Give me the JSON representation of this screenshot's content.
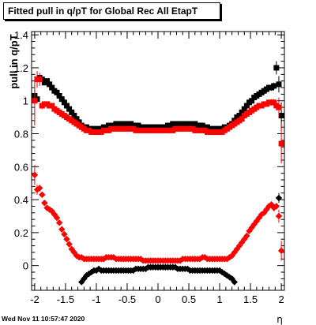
{
  "chart_data": {
    "type": "scatter",
    "title": "Fitted pull in q/pT for Global Rec All EtapT",
    "ylabel": "pull in q/pT",
    "xlabel": "η",
    "xlim": [
      -2.05,
      2.05
    ],
    "ylim": [
      -0.15,
      1.42
    ],
    "x_ticks": [
      "-2",
      "-1.5",
      "-1",
      "-0.5",
      "0",
      "0.5",
      "1",
      "1.5",
      "2"
    ],
    "y_ticks": [
      "0",
      "0.2",
      "0.4",
      "0.6",
      "0.8",
      "1",
      "1.2",
      "1.4"
    ],
    "grid": false,
    "legend": "none",
    "footer": "Wed Nov 11 10:57:47 2020",
    "series": [
      {
        "marker": "square",
        "color": "#000000",
        "x": [
          -2.0,
          -1.96,
          -1.92,
          -1.88,
          -1.84,
          -1.8,
          -1.76,
          -1.72,
          -1.68,
          -1.64,
          -1.6,
          -1.56,
          -1.52,
          -1.48,
          -1.44,
          -1.4,
          -1.36,
          -1.32,
          -1.28,
          -1.24,
          -1.2,
          -1.16,
          -1.12,
          -1.08,
          -1.04,
          -1.0,
          -0.96,
          -0.92,
          -0.88,
          -0.84,
          -0.8,
          -0.76,
          -0.72,
          -0.68,
          -0.64,
          -0.6,
          -0.56,
          -0.52,
          -0.48,
          -0.44,
          -0.4,
          -0.36,
          -0.32,
          -0.28,
          -0.24,
          -0.2,
          -0.16,
          -0.12,
          -0.08,
          -0.04,
          0.0,
          0.04,
          0.08,
          0.12,
          0.16,
          0.2,
          0.24,
          0.28,
          0.32,
          0.36,
          0.4,
          0.44,
          0.48,
          0.52,
          0.56,
          0.6,
          0.64,
          0.68,
          0.72,
          0.76,
          0.8,
          0.84,
          0.88,
          0.92,
          0.96,
          1.0,
          1.04,
          1.08,
          1.12,
          1.16,
          1.2,
          1.24,
          1.28,
          1.32,
          1.36,
          1.4,
          1.44,
          1.48,
          1.52,
          1.56,
          1.6,
          1.64,
          1.68,
          1.72,
          1.76,
          1.8,
          1.84,
          1.88,
          1.92,
          1.96,
          2.0
        ],
        "y": [
          1.03,
          1.01,
          1.14,
          1.13,
          1.11,
          1.12,
          1.1,
          1.08,
          1.06,
          1.05,
          1.03,
          1.01,
          0.99,
          0.97,
          0.95,
          0.93,
          0.91,
          0.89,
          0.87,
          0.85,
          0.84,
          0.84,
          0.83,
          0.83,
          0.83,
          0.83,
          0.83,
          0.83,
          0.84,
          0.84,
          0.85,
          0.85,
          0.85,
          0.86,
          0.86,
          0.86,
          0.86,
          0.86,
          0.86,
          0.86,
          0.85,
          0.85,
          0.85,
          0.84,
          0.84,
          0.84,
          0.84,
          0.84,
          0.84,
          0.84,
          0.84,
          0.84,
          0.84,
          0.84,
          0.85,
          0.85,
          0.86,
          0.86,
          0.86,
          0.86,
          0.86,
          0.86,
          0.86,
          0.86,
          0.86,
          0.86,
          0.85,
          0.85,
          0.85,
          0.84,
          0.84,
          0.83,
          0.83,
          0.83,
          0.83,
          0.83,
          0.83,
          0.84,
          0.84,
          0.85,
          0.86,
          0.88,
          0.9,
          0.91,
          0.93,
          0.95,
          0.97,
          0.99,
          1.0,
          1.02,
          1.03,
          1.04,
          1.05,
          1.06,
          1.07,
          1.08,
          1.08,
          1.09,
          1.2,
          1.1,
          0.91
        ],
        "yerr": [
          0.04,
          0.02,
          0.02,
          0.01,
          0.01,
          0.01,
          0.01,
          0.01,
          0.01,
          0.01,
          0.01,
          0.01,
          0.01,
          0.01,
          0.01,
          0.01,
          0.01,
          0.01,
          0.01,
          0.01,
          0.01,
          0.01,
          0.01,
          0.01,
          0.01,
          0.01,
          0.01,
          0.01,
          0.01,
          0.01,
          0.01,
          0.01,
          0.01,
          0.01,
          0.01,
          0.01,
          0.01,
          0.01,
          0.01,
          0.01,
          0.01,
          0.01,
          0.01,
          0.01,
          0.01,
          0.01,
          0.01,
          0.01,
          0.01,
          0.01,
          0.01,
          0.01,
          0.01,
          0.01,
          0.01,
          0.01,
          0.01,
          0.01,
          0.01,
          0.01,
          0.01,
          0.01,
          0.01,
          0.01,
          0.01,
          0.01,
          0.01,
          0.01,
          0.01,
          0.01,
          0.01,
          0.01,
          0.01,
          0.01,
          0.01,
          0.01,
          0.01,
          0.01,
          0.01,
          0.01,
          0.01,
          0.01,
          0.01,
          0.01,
          0.01,
          0.01,
          0.01,
          0.01,
          0.01,
          0.01,
          0.01,
          0.01,
          0.01,
          0.01,
          0.01,
          0.01,
          0.02,
          0.02,
          0.04,
          0.05,
          0.08
        ]
      },
      {
        "marker": "square",
        "color": "#ff0000",
        "x": [
          -2.0,
          -1.96,
          -1.92,
          -1.88,
          -1.84,
          -1.8,
          -1.76,
          -1.72,
          -1.68,
          -1.64,
          -1.6,
          -1.56,
          -1.52,
          -1.48,
          -1.44,
          -1.4,
          -1.36,
          -1.32,
          -1.28,
          -1.24,
          -1.2,
          -1.16,
          -1.12,
          -1.08,
          -1.04,
          -1.0,
          -0.96,
          -0.92,
          -0.88,
          -0.84,
          -0.8,
          -0.76,
          -0.72,
          -0.68,
          -0.64,
          -0.6,
          -0.56,
          -0.52,
          -0.48,
          -0.44,
          -0.4,
          -0.36,
          -0.32,
          -0.28,
          -0.24,
          -0.2,
          -0.16,
          -0.12,
          -0.08,
          -0.04,
          0.0,
          0.04,
          0.08,
          0.12,
          0.16,
          0.2,
          0.24,
          0.28,
          0.32,
          0.36,
          0.4,
          0.44,
          0.48,
          0.52,
          0.56,
          0.6,
          0.64,
          0.68,
          0.72,
          0.76,
          0.8,
          0.84,
          0.88,
          0.92,
          0.96,
          1.0,
          1.04,
          1.08,
          1.12,
          1.16,
          1.2,
          1.24,
          1.28,
          1.32,
          1.36,
          1.4,
          1.44,
          1.48,
          1.52,
          1.56,
          1.6,
          1.64,
          1.68,
          1.72,
          1.76,
          1.8,
          1.84,
          1.88,
          1.92,
          1.96,
          2.0
        ],
        "y": [
          1.0,
          1.13,
          1.13,
          0.97,
          0.98,
          0.98,
          0.97,
          0.97,
          0.95,
          0.94,
          0.93,
          0.92,
          0.91,
          0.9,
          0.89,
          0.88,
          0.87,
          0.86,
          0.85,
          0.84,
          0.83,
          0.82,
          0.82,
          0.81,
          0.81,
          0.81,
          0.81,
          0.81,
          0.82,
          0.82,
          0.82,
          0.83,
          0.83,
          0.83,
          0.83,
          0.83,
          0.83,
          0.83,
          0.83,
          0.83,
          0.83,
          0.82,
          0.82,
          0.82,
          0.82,
          0.82,
          0.82,
          0.82,
          0.82,
          0.82,
          0.82,
          0.82,
          0.82,
          0.82,
          0.82,
          0.82,
          0.82,
          0.83,
          0.83,
          0.83,
          0.83,
          0.83,
          0.83,
          0.83,
          0.83,
          0.82,
          0.82,
          0.82,
          0.82,
          0.82,
          0.81,
          0.81,
          0.81,
          0.81,
          0.81,
          0.81,
          0.81,
          0.82,
          0.83,
          0.84,
          0.85,
          0.86,
          0.87,
          0.88,
          0.89,
          0.91,
          0.92,
          0.93,
          0.94,
          0.95,
          0.96,
          0.97,
          0.97,
          0.98,
          0.98,
          0.99,
          0.99,
          0.99,
          0.97,
          0.96,
          0.74
        ],
        "yerr": [
          0.15,
          0.05,
          0.04,
          0.02,
          0.01,
          0.01,
          0.01,
          0.01,
          0.01,
          0.01,
          0.01,
          0.01,
          0.01,
          0.01,
          0.01,
          0.01,
          0.01,
          0.01,
          0.01,
          0.01,
          0.01,
          0.01,
          0.01,
          0.01,
          0.01,
          0.01,
          0.01,
          0.01,
          0.01,
          0.01,
          0.01,
          0.01,
          0.01,
          0.01,
          0.01,
          0.01,
          0.01,
          0.01,
          0.01,
          0.01,
          0.01,
          0.01,
          0.01,
          0.01,
          0.01,
          0.01,
          0.01,
          0.01,
          0.01,
          0.01,
          0.01,
          0.01,
          0.01,
          0.01,
          0.01,
          0.01,
          0.01,
          0.01,
          0.01,
          0.01,
          0.01,
          0.01,
          0.01,
          0.01,
          0.01,
          0.01,
          0.01,
          0.01,
          0.01,
          0.01,
          0.01,
          0.01,
          0.01,
          0.01,
          0.01,
          0.01,
          0.01,
          0.01,
          0.01,
          0.01,
          0.01,
          0.01,
          0.01,
          0.01,
          0.01,
          0.01,
          0.01,
          0.01,
          0.01,
          0.01,
          0.01,
          0.01,
          0.01,
          0.01,
          0.01,
          0.01,
          0.02,
          0.02,
          0.03,
          0.06,
          0.12
        ]
      },
      {
        "marker": "diamond",
        "color": "#ff0000",
        "x": [
          -2.0,
          -1.96,
          -1.92,
          -1.88,
          -1.84,
          -1.8,
          -1.76,
          -1.72,
          -1.68,
          -1.64,
          -1.6,
          -1.56,
          -1.52,
          -1.48,
          -1.44,
          -1.4,
          -1.36,
          -1.32,
          -1.28,
          -1.24,
          -1.2,
          -1.16,
          -1.12,
          -1.08,
          -1.04,
          -1.0,
          -0.96,
          -0.92,
          -0.88,
          -0.84,
          -0.8,
          -0.76,
          -0.72,
          -0.68,
          -0.64,
          -0.6,
          -0.56,
          -0.52,
          -0.48,
          -0.44,
          -0.4,
          -0.36,
          -0.32,
          -0.28,
          -0.24,
          -0.2,
          -0.16,
          -0.12,
          -0.08,
          -0.04,
          0.0,
          0.04,
          0.08,
          0.12,
          0.16,
          0.2,
          0.24,
          0.28,
          0.32,
          0.36,
          0.4,
          0.44,
          0.48,
          0.52,
          0.56,
          0.6,
          0.64,
          0.68,
          0.72,
          0.76,
          0.8,
          0.84,
          0.88,
          0.92,
          0.96,
          1.0,
          1.04,
          1.08,
          1.12,
          1.16,
          1.2,
          1.24,
          1.28,
          1.32,
          1.36,
          1.4,
          1.44,
          1.48,
          1.52,
          1.56,
          1.6,
          1.64,
          1.68,
          1.72,
          1.76,
          1.8,
          1.84,
          1.88,
          1.92,
          1.96,
          2.0
        ],
        "y": [
          0.55,
          0.46,
          0.47,
          0.43,
          0.38,
          0.35,
          0.34,
          0.33,
          0.31,
          0.29,
          0.26,
          0.22,
          0.19,
          0.16,
          0.13,
          0.1,
          0.08,
          0.06,
          0.05,
          0.05,
          0.04,
          0.04,
          0.04,
          0.04,
          0.04,
          0.04,
          0.04,
          0.04,
          0.04,
          0.05,
          0.05,
          0.05,
          0.05,
          0.04,
          0.04,
          0.04,
          0.04,
          0.04,
          0.04,
          0.04,
          0.04,
          0.04,
          0.04,
          0.04,
          0.03,
          0.03,
          0.03,
          0.03,
          0.03,
          0.03,
          0.03,
          0.03,
          0.03,
          0.03,
          0.03,
          0.03,
          0.03,
          0.03,
          0.03,
          0.03,
          0.04,
          0.04,
          0.04,
          0.04,
          0.04,
          0.04,
          0.04,
          0.04,
          0.05,
          0.05,
          0.04,
          0.04,
          0.04,
          0.04,
          0.04,
          0.04,
          0.04,
          0.04,
          0.04,
          0.05,
          0.06,
          0.08,
          0.1,
          0.12,
          0.14,
          0.16,
          0.18,
          0.21,
          0.23,
          0.25,
          0.27,
          0.29,
          0.31,
          0.32,
          0.34,
          0.36,
          0.37,
          0.35,
          0.36,
          0.3,
          0.09
        ],
        "yerr": [
          0.06,
          0.03,
          0.02,
          0.01,
          0.01,
          0.01,
          0.01,
          0.01,
          0.01,
          0.01,
          0.01,
          0.01,
          0.01,
          0.01,
          0.01,
          0.01,
          0.01,
          0.01,
          0.01,
          0.01,
          0.01,
          0.01,
          0.01,
          0.01,
          0.01,
          0.01,
          0.01,
          0.01,
          0.01,
          0.01,
          0.01,
          0.01,
          0.01,
          0.01,
          0.01,
          0.01,
          0.01,
          0.01,
          0.01,
          0.01,
          0.01,
          0.01,
          0.01,
          0.01,
          0.01,
          0.01,
          0.01,
          0.01,
          0.01,
          0.01,
          0.01,
          0.01,
          0.01,
          0.01,
          0.01,
          0.01,
          0.01,
          0.01,
          0.01,
          0.01,
          0.01,
          0.01,
          0.01,
          0.01,
          0.01,
          0.01,
          0.01,
          0.01,
          0.01,
          0.01,
          0.01,
          0.01,
          0.01,
          0.01,
          0.01,
          0.01,
          0.01,
          0.01,
          0.01,
          0.01,
          0.01,
          0.01,
          0.01,
          0.01,
          0.01,
          0.01,
          0.01,
          0.01,
          0.01,
          0.01,
          0.01,
          0.01,
          0.01,
          0.01,
          0.01,
          0.01,
          0.02,
          0.02,
          0.02,
          0.04,
          0.06
        ]
      },
      {
        "marker": "diamond",
        "color": "#000000",
        "x": [
          -1.24,
          -1.2,
          -1.16,
          -1.12,
          -1.08,
          -1.04,
          -1.0,
          -0.96,
          -0.92,
          -0.88,
          -0.84,
          -0.8,
          -0.76,
          -0.72,
          -0.68,
          -0.64,
          -0.6,
          -0.56,
          -0.52,
          -0.48,
          -0.44,
          -0.4,
          -0.36,
          -0.32,
          -0.28,
          -0.24,
          -0.2,
          -0.16,
          -0.12,
          -0.08,
          -0.04,
          0.0,
          0.04,
          0.08,
          0.12,
          0.16,
          0.2,
          0.24,
          0.28,
          0.32,
          0.36,
          0.4,
          0.44,
          0.48,
          0.52,
          0.56,
          0.6,
          0.64,
          0.68,
          0.72,
          0.76,
          0.8,
          0.84,
          0.88,
          0.92,
          0.96,
          1.0,
          1.04,
          1.08,
          1.12,
          1.16,
          1.2,
          1.24,
          1.96
        ],
        "y": [
          -0.1,
          -0.08,
          -0.06,
          -0.05,
          -0.04,
          -0.03,
          -0.03,
          -0.02,
          -0.03,
          -0.03,
          -0.03,
          -0.03,
          -0.03,
          -0.03,
          -0.03,
          -0.03,
          -0.03,
          -0.03,
          -0.03,
          -0.03,
          -0.03,
          -0.03,
          -0.02,
          -0.02,
          -0.02,
          -0.02,
          -0.02,
          -0.01,
          -0.01,
          -0.01,
          -0.01,
          -0.01,
          -0.01,
          -0.01,
          -0.01,
          -0.01,
          -0.01,
          -0.01,
          -0.01,
          -0.02,
          -0.02,
          -0.02,
          -0.02,
          -0.02,
          -0.03,
          -0.03,
          -0.03,
          -0.03,
          -0.03,
          -0.03,
          -0.03,
          -0.03,
          -0.03,
          -0.03,
          -0.03,
          -0.03,
          -0.03,
          -0.04,
          -0.05,
          -0.06,
          -0.07,
          -0.08,
          -0.1,
          0.41
        ],
        "yerr": [
          0.01,
          0.01,
          0.01,
          0.01,
          0.01,
          0.01,
          0.01,
          0.01,
          0.01,
          0.01,
          0.01,
          0.01,
          0.01,
          0.01,
          0.01,
          0.01,
          0.01,
          0.01,
          0.01,
          0.01,
          0.01,
          0.01,
          0.01,
          0.01,
          0.01,
          0.01,
          0.01,
          0.01,
          0.01,
          0.01,
          0.01,
          0.01,
          0.01,
          0.01,
          0.01,
          0.01,
          0.01,
          0.01,
          0.01,
          0.01,
          0.01,
          0.01,
          0.01,
          0.01,
          0.01,
          0.01,
          0.01,
          0.01,
          0.01,
          0.01,
          0.01,
          0.01,
          0.01,
          0.01,
          0.01,
          0.01,
          0.01,
          0.01,
          0.01,
          0.01,
          0.01,
          0.01,
          0.01,
          0.03
        ]
      }
    ]
  }
}
